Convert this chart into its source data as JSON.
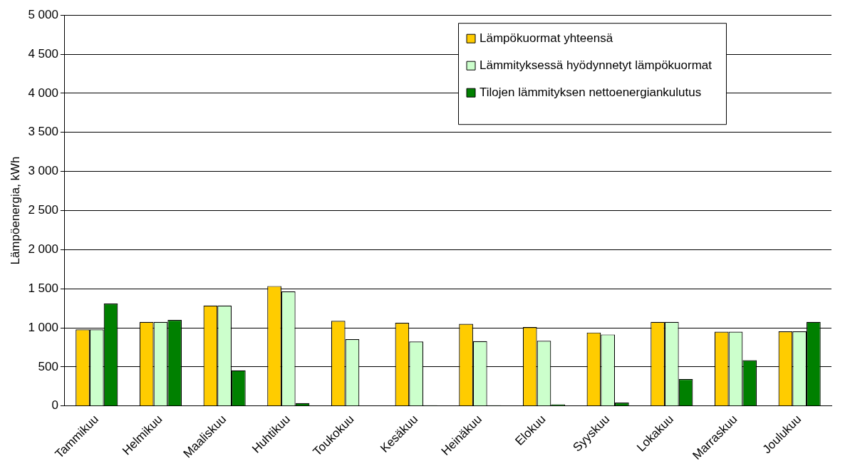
{
  "chart_data": {
    "type": "bar",
    "ylabel": "Lämpöenergia, kWh",
    "categories": [
      "Tammikuu",
      "Helmikuu",
      "Maaliskuu",
      "Huhtikuu",
      "Toukokuu",
      "Kesäkuu",
      "Heinäkuu",
      "Elokuu",
      "Syyskuu",
      "Lokakuu",
      "Marraskuu",
      "Joulukuu"
    ],
    "series": [
      {
        "name": "Lämpökuormat yhteensä",
        "color": "#ffcc00",
        "values": [
          980,
          1075,
          1285,
          1535,
          1090,
          1065,
          1050,
          1010,
          940,
          1075,
          950,
          955
        ]
      },
      {
        "name": "Lämmityksessä hyödynnetyt lämpökuormat",
        "color": "#ccffcc",
        "values": [
          980,
          1075,
          1285,
          1465,
          855,
          825,
          830,
          835,
          915,
          1075,
          950,
          955
        ]
      },
      {
        "name": "Tilojen lämmityksen nettoenergiankulutus",
        "color": "#008000",
        "values": [
          1310,
          1100,
          455,
          37,
          0,
          10,
          10,
          22,
          43,
          345,
          585,
          1075
        ]
      }
    ],
    "ylim": [
      0,
      5000
    ],
    "yticks": [
      {
        "value": 0,
        "label": "0"
      },
      {
        "value": 500,
        "label": "500"
      },
      {
        "value": 1000,
        "label": "1 000"
      },
      {
        "value": 1500,
        "label": "1 500"
      },
      {
        "value": 2000,
        "label": "2 000"
      },
      {
        "value": 2500,
        "label": "2 500"
      },
      {
        "value": 3000,
        "label": "3 000"
      },
      {
        "value": 3500,
        "label": "3 500"
      },
      {
        "value": 4000,
        "label": "4 000"
      },
      {
        "value": 4500,
        "label": "4 500"
      },
      {
        "value": 5000,
        "label": "5 000"
      }
    ],
    "grid": "y",
    "legend": "top right"
  }
}
